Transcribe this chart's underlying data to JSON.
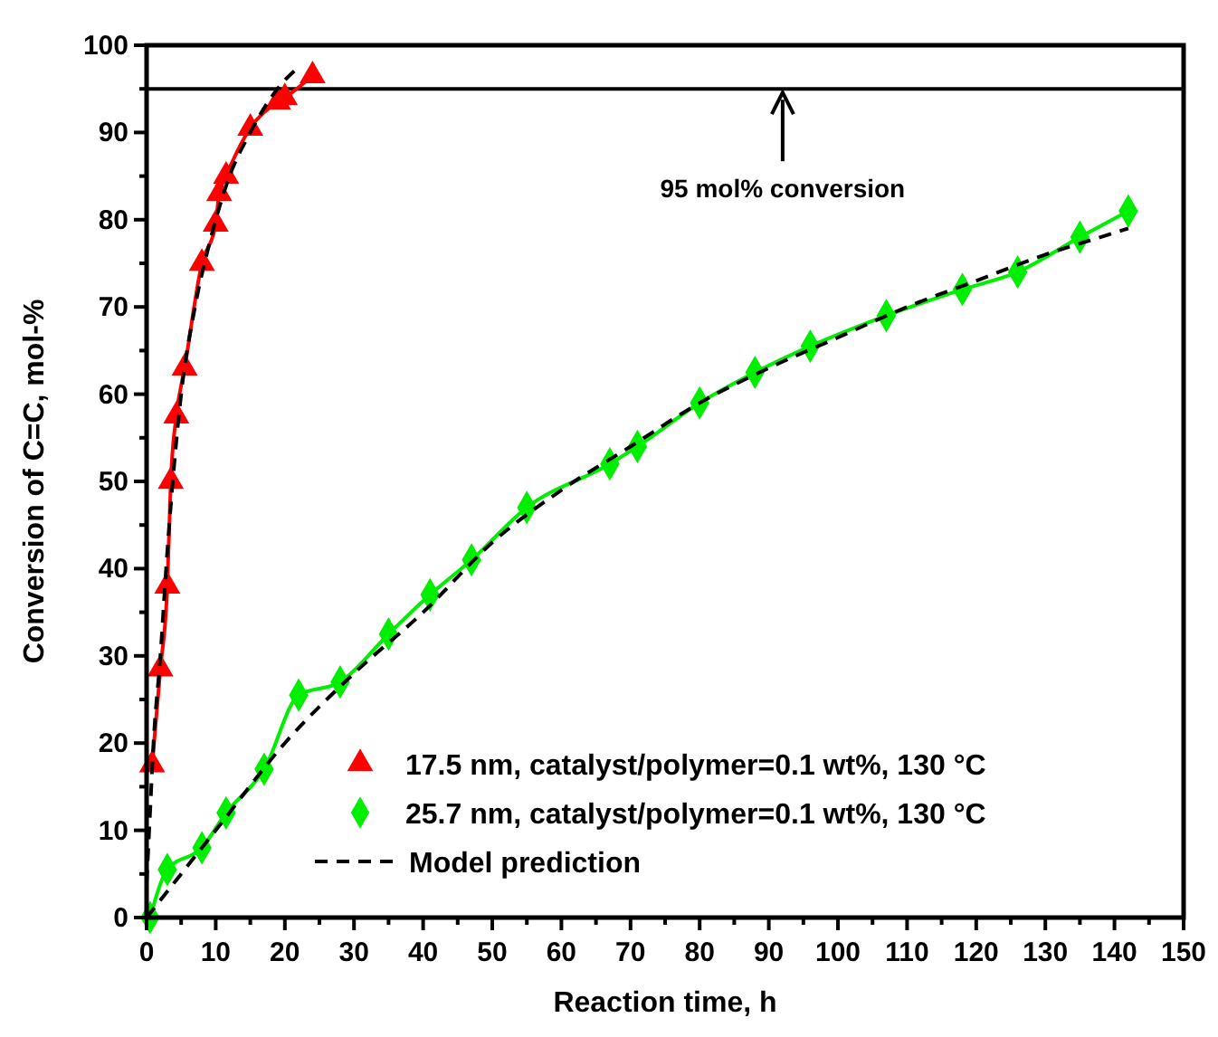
{
  "chart_data": {
    "type": "line",
    "xlabel": "Reaction time, h",
    "ylabel": "Conversion of C=C, mol-%",
    "xlim": [
      0,
      150
    ],
    "ylim": [
      0,
      100
    ],
    "xticks": [
      0,
      {
        "value": 5,
        "label": null
      },
      10,
      {
        "value": 15,
        "label": null
      },
      20,
      {
        "value": 25,
        "label": null
      },
      30,
      {
        "value": 35,
        "label": null
      },
      40,
      {
        "value": 45,
        "label": null
      },
      50,
      {
        "value": 55,
        "label": null
      },
      60,
      {
        "value": 65,
        "label": null
      },
      70,
      {
        "value": 75,
        "label": null
      },
      80,
      {
        "value": 85,
        "label": null
      },
      90,
      {
        "value": 95,
        "label": null
      },
      100,
      {
        "value": 105,
        "label": null
      },
      110,
      {
        "value": 115,
        "label": null
      },
      120,
      {
        "value": 125,
        "label": null
      },
      130,
      {
        "value": 135,
        "label": null
      },
      140,
      {
        "value": 145,
        "label": null
      },
      150
    ],
    "yticks": [
      0,
      {
        "value": 5,
        "label": null
      },
      10,
      {
        "value": 15,
        "label": null
      },
      20,
      {
        "value": 25,
        "label": null
      },
      30,
      {
        "value": 35,
        "label": null
      },
      40,
      {
        "value": 45,
        "label": null
      },
      50,
      {
        "value": 55,
        "label": null
      },
      60,
      {
        "value": 65,
        "label": null
      },
      70,
      {
        "value": 75,
        "label": null
      },
      80,
      {
        "value": 85,
        "label": null
      },
      90,
      {
        "value": 95,
        "label": null
      },
      100
    ],
    "grid": false,
    "legend": "bottom right",
    "series": [
      {
        "name": "17.5 nm, catalyst/polymer=0.1 wt%, 130 °C",
        "color": "#ff0000",
        "marker": "triangle",
        "line_style": "solid",
        "x": [
          0.8,
          2,
          3,
          3.5,
          4.3,
          5.5,
          8,
          10,
          10.5,
          11.5,
          15,
          19,
          20,
          24
        ],
        "values": [
          17.5,
          28.5,
          38,
          50,
          57.5,
          63,
          75,
          79.5,
          83,
          85,
          90.5,
          93.5,
          94,
          96.5
        ]
      },
      {
        "name": "25.7 nm, catalyst/polymer=0.1 wt%, 130 °C",
        "color": "#00ee00",
        "marker": "diamond",
        "line_style": "solid",
        "x": [
          0.5,
          3,
          8,
          11.5,
          17,
          22,
          28,
          35,
          41,
          47,
          55,
          67,
          71,
          80,
          88,
          96,
          107,
          118,
          126,
          135,
          142
        ],
        "values": [
          0,
          5.5,
          8,
          12,
          17,
          25.5,
          27,
          32.5,
          37,
          41,
          47,
          52,
          54,
          59,
          62.5,
          65.5,
          69,
          72,
          74,
          78,
          81
        ]
      },
      {
        "name": "Model prediction",
        "color": "#000000",
        "marker": "none",
        "line_style": "dashed",
        "x": [
          0,
          0.5,
          1,
          2,
          3,
          4,
          5,
          7,
          9,
          12,
          15,
          18,
          20,
          22
        ],
        "values": [
          4,
          12,
          20,
          30,
          42,
          52,
          60,
          70,
          77,
          85,
          90,
          94,
          96,
          97.5
        ]
      },
      {
        "color": "#000000",
        "marker": "none",
        "line_style": "dashed",
        "x": [
          0,
          2,
          10,
          20,
          30,
          40,
          50,
          60,
          70,
          80,
          90,
          100,
          110,
          120,
          130,
          140,
          142
        ],
        "values": [
          0,
          2,
          10,
          20,
          28,
          35,
          43,
          49,
          54,
          59,
          63,
          66.5,
          70,
          73,
          76,
          78.5,
          79
        ]
      }
    ],
    "ref_lines": [
      {
        "axis": "y",
        "value": 95,
        "color": "#000000",
        "line_style": "solid"
      }
    ],
    "annotations": [
      {
        "text": "95 mol% conversion",
        "x": 92,
        "y": 95
      }
    ]
  }
}
